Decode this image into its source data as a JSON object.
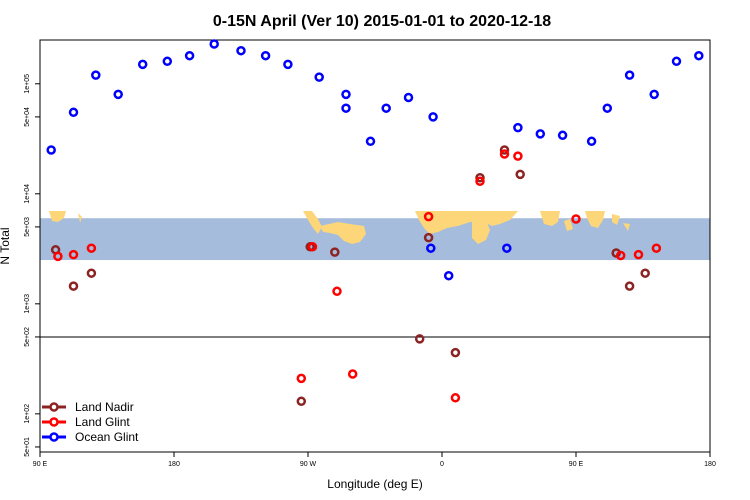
{
  "chart_data": {
    "type": "scatter",
    "title": "0-15N April (Ver 10)   2015-01-01 to 2020-12-18",
    "xlabel": "Longitude (deg E)",
    "ylabel": "N Total",
    "x_scale": "linear",
    "y_scale": "log",
    "xlim": [
      90,
      390
    ],
    "ylim": [
      45,
      250000
    ],
    "x_ticks": [
      {
        "value": 90,
        "label": "90 E"
      },
      {
        "value": 150,
        "label": "180"
      },
      {
        "value": 210,
        "label": "90 W"
      },
      {
        "value": 270,
        "label": "0"
      },
      {
        "value": 330,
        "label": "90 E"
      },
      {
        "value": 390,
        "label": "180"
      }
    ],
    "y_ticks": [
      {
        "value": 50,
        "label": "5e+01"
      },
      {
        "value": 100,
        "label": "1e+02"
      },
      {
        "value": 500,
        "label": "5e+02"
      },
      {
        "value": 1000,
        "label": "1e+03"
      },
      {
        "value": 5000,
        "label": "5e+03"
      },
      {
        "value": 10000,
        "label": "1e+04"
      },
      {
        "value": 50000,
        "label": "5e+04"
      },
      {
        "value": 100000,
        "label": "1e+05"
      }
    ],
    "reference_line_y": 500,
    "map_band_y": [
      2500,
      6000
    ],
    "legend_position": "bottom-left",
    "series": [
      {
        "name": "Land Nadir",
        "color": "#8b2323",
        "points": [
          [
            97,
            3100
          ],
          [
            105,
            1450
          ],
          [
            113,
            1900
          ],
          [
            207,
            130
          ],
          [
            211,
            3300
          ],
          [
            222,
            2950
          ],
          [
            260,
            480
          ],
          [
            264,
            4000
          ],
          [
            276,
            360
          ],
          [
            287,
            14000
          ],
          [
            298,
            25000
          ],
          [
            305,
            15000
          ],
          [
            348,
            2900
          ],
          [
            354,
            1450
          ],
          [
            361,
            1900
          ]
        ]
      },
      {
        "name": "Land Glint",
        "color": "#ff0000",
        "points": [
          [
            98,
            2700
          ],
          [
            105,
            2800
          ],
          [
            113,
            3200
          ],
          [
            207,
            210
          ],
          [
            212,
            3300
          ],
          [
            223,
            1300
          ],
          [
            230,
            230
          ],
          [
            264,
            6200
          ],
          [
            276,
            140
          ],
          [
            287,
            13000
          ],
          [
            298,
            23000
          ],
          [
            304,
            22000
          ],
          [
            330,
            5900
          ],
          [
            350,
            2750
          ],
          [
            358,
            2800
          ],
          [
            366,
            3200
          ]
        ]
      },
      {
        "name": "Ocean Glint",
        "color": "#0000ff",
        "points": [
          [
            95,
            25000
          ],
          [
            105,
            55000
          ],
          [
            115,
            120000
          ],
          [
            125,
            80000
          ],
          [
            136,
            150000
          ],
          [
            147,
            160000
          ],
          [
            157,
            180000
          ],
          [
            168,
            230000
          ],
          [
            180,
            200000
          ],
          [
            191,
            180000
          ],
          [
            201,
            150000
          ],
          [
            215,
            115000
          ],
          [
            227,
            80000
          ],
          [
            227,
            60000
          ],
          [
            238,
            30000
          ],
          [
            245,
            60000
          ],
          [
            255,
            75000
          ],
          [
            266,
            50000
          ],
          [
            265,
            3200
          ],
          [
            273,
            1800
          ],
          [
            299,
            3200
          ],
          [
            304,
            40000
          ],
          [
            314,
            35000
          ],
          [
            324,
            34000
          ],
          [
            337,
            30000
          ],
          [
            344,
            60000
          ],
          [
            354,
            120000
          ],
          [
            365,
            80000
          ],
          [
            375,
            160000
          ],
          [
            385,
            180000
          ]
        ]
      }
    ]
  }
}
